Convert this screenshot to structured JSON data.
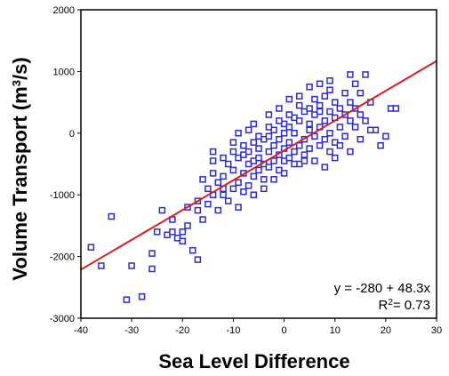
{
  "chart_data": {
    "type": "scatter",
    "title": "",
    "xlabel": "Sea Level Difference",
    "ylabel_main": "Volume Transport (m",
    "ylabel_sup": "3",
    "ylabel_tail": "/s)",
    "xlim": [
      -40,
      30
    ],
    "ylim": [
      -3000,
      2000
    ],
    "xticks": [
      "-40",
      "-30",
      "-20",
      "-10",
      "0",
      "10",
      "20",
      "30"
    ],
    "yticks": [
      "2000",
      "1000",
      "0",
      "-1000",
      "-2000",
      "-3000"
    ],
    "grid": false,
    "colors": {
      "points": "#2b2bd6",
      "fit_line": "#d42020",
      "axis": "#000000"
    },
    "fit_line": {
      "intercept": -280,
      "slope": 48.3,
      "x_range": [
        -40,
        30
      ]
    },
    "annotation": {
      "equation": "y = -280 + 48.3x",
      "r2_prefix": "R",
      "r2_sup": "2",
      "r2_value": "= 0.73"
    },
    "points": [
      [
        -38,
        -1850
      ],
      [
        -36,
        -2150
      ],
      [
        -34,
        -1350
      ],
      [
        -31,
        -2700
      ],
      [
        -30,
        -2150
      ],
      [
        -28,
        -2650
      ],
      [
        -26,
        -2200
      ],
      [
        -26,
        -1950
      ],
      [
        -25,
        -1600
      ],
      [
        -24,
        -1250
      ],
      [
        -23,
        -1650
      ],
      [
        -22,
        -1600
      ],
      [
        -22,
        -1400
      ],
      [
        -21,
        -1700
      ],
      [
        -20,
        -1750
      ],
      [
        -20,
        -1600
      ],
      [
        -19,
        -1200
      ],
      [
        -19,
        -1500
      ],
      [
        -18,
        -1900
      ],
      [
        -17,
        -2050
      ],
      [
        -17,
        -1100
      ],
      [
        -17,
        -1250
      ],
      [
        -16,
        -1400
      ],
      [
        -16,
        -750
      ],
      [
        -15,
        -900
      ],
      [
        -15,
        -1150
      ],
      [
        -14,
        -650
      ],
      [
        -14,
        -450
      ],
      [
        -14,
        -1000
      ],
      [
        -13,
        -800
      ],
      [
        -13,
        -1250
      ],
      [
        -12,
        -400
      ],
      [
        -12,
        -900
      ],
      [
        -12,
        -700
      ],
      [
        -11,
        -500
      ],
      [
        -11,
        -1100
      ],
      [
        -10,
        -300
      ],
      [
        -10,
        -600
      ],
      [
        -10,
        -900
      ],
      [
        -9,
        -400
      ],
      [
        -9,
        -800
      ],
      [
        -9,
        -1200
      ],
      [
        -8,
        -350
      ],
      [
        -8,
        -650
      ],
      [
        -8,
        -200
      ],
      [
        -7,
        -500
      ],
      [
        -7,
        -850
      ],
      [
        -7,
        -300
      ],
      [
        -6,
        -450
      ],
      [
        -6,
        -150
      ],
      [
        -6,
        -700
      ],
      [
        -5,
        -600
      ],
      [
        -5,
        -250
      ],
      [
        -5,
        -400
      ],
      [
        -4,
        -100
      ],
      [
        -4,
        -500
      ],
      [
        -4,
        -750
      ],
      [
        -3,
        -300
      ],
      [
        -3,
        -50
      ],
      [
        -3,
        -550
      ],
      [
        -2,
        -200
      ],
      [
        -2,
        -450
      ],
      [
        -2,
        50
      ],
      [
        -1,
        -350
      ],
      [
        -1,
        -100
      ],
      [
        -1,
        -600
      ],
      [
        0,
        -250
      ],
      [
        0,
        0
      ],
      [
        0,
        -450
      ],
      [
        0,
        150
      ],
      [
        1,
        -150
      ],
      [
        1,
        -400
      ],
      [
        1,
        100
      ],
      [
        2,
        -300
      ],
      [
        2,
        0
      ],
      [
        2,
        250
      ],
      [
        3,
        -200
      ],
      [
        3,
        200
      ],
      [
        3,
        -500
      ],
      [
        4,
        -100
      ],
      [
        4,
        350
      ],
      [
        4,
        -350
      ],
      [
        5,
        50
      ],
      [
        5,
        400
      ],
      [
        5,
        -250
      ],
      [
        6,
        -50
      ],
      [
        6,
        300
      ],
      [
        6,
        550
      ],
      [
        7,
        100
      ],
      [
        7,
        -200
      ],
      [
        7,
        450
      ],
      [
        8,
        200
      ],
      [
        8,
        600
      ],
      [
        8,
        -100
      ],
      [
        9,
        0
      ],
      [
        9,
        350
      ],
      [
        9,
        700
      ],
      [
        10,
        250
      ],
      [
        10,
        -150
      ],
      [
        10,
        500
      ],
      [
        11,
        100
      ],
      [
        11,
        400
      ],
      [
        12,
        300
      ],
      [
        12,
        650
      ],
      [
        12,
        -50
      ],
      [
        13,
        200
      ],
      [
        13,
        500
      ],
      [
        13,
        950
      ],
      [
        14,
        100
      ],
      [
        14,
        400
      ],
      [
        14,
        800
      ],
      [
        15,
        300
      ],
      [
        15,
        650
      ],
      [
        16,
        950
      ],
      [
        16,
        200
      ],
      [
        17,
        500
      ],
      [
        18,
        50
      ],
      [
        20,
        -50
      ],
      [
        21,
        400
      ],
      [
        22,
        400
      ],
      [
        -12,
        -1000
      ],
      [
        -8,
        -950
      ],
      [
        -6,
        -1000
      ],
      [
        -4,
        -900
      ],
      [
        -2,
        -750
      ],
      [
        0,
        -650
      ],
      [
        2,
        -500
      ],
      [
        4,
        -450
      ],
      [
        -14,
        -300
      ],
      [
        -10,
        -150
      ],
      [
        -6,
        150
      ],
      [
        -3,
        300
      ],
      [
        -1,
        400
      ],
      [
        1,
        550
      ],
      [
        3,
        600
      ],
      [
        5,
        750
      ],
      [
        7,
        800
      ],
      [
        9,
        850
      ],
      [
        -9,
        0
      ],
      [
        -7,
        50
      ],
      [
        -5,
        -50
      ],
      [
        -3,
        100
      ],
      [
        -1,
        200
      ],
      [
        1,
        300
      ],
      [
        3,
        450
      ],
      [
        5,
        150
      ],
      [
        7,
        350
      ],
      [
        9,
        -300
      ],
      [
        11,
        -200
      ],
      [
        13,
        -300
      ],
      [
        15,
        -100
      ],
      [
        17,
        50
      ],
      [
        19,
        -200
      ],
      [
        6,
        -450
      ],
      [
        8,
        -550
      ],
      [
        10,
        -400
      ]
    ]
  }
}
